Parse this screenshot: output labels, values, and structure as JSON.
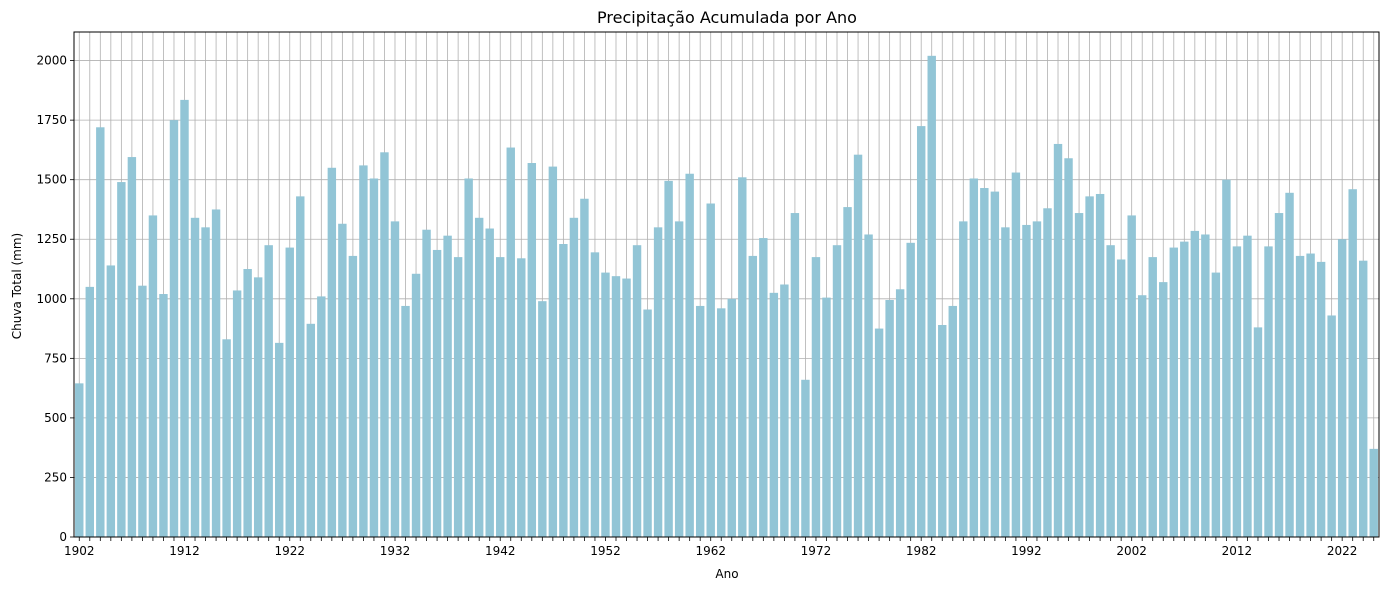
{
  "chart_data": {
    "type": "bar",
    "title": "Precipitação Acumulada por Ano",
    "xlabel": "Ano",
    "ylabel": "Chuva Total (mm)",
    "ylim": [
      0,
      2120
    ],
    "yticks": [
      0,
      250,
      500,
      750,
      1000,
      1250,
      1500,
      1750,
      2000
    ],
    "xtick_labels": [
      "1902",
      "1912",
      "1922",
      "1932",
      "1942",
      "1952",
      "1962",
      "1972",
      "1982",
      "1992",
      "2002",
      "2012",
      "2022"
    ],
    "grid": true,
    "bar_color": "#92c5d6",
    "categories": [
      1902,
      1903,
      1904,
      1905,
      1906,
      1907,
      1908,
      1909,
      1910,
      1911,
      1912,
      1913,
      1914,
      1915,
      1916,
      1917,
      1918,
      1919,
      1920,
      1921,
      1922,
      1923,
      1924,
      1925,
      1926,
      1927,
      1928,
      1929,
      1930,
      1931,
      1932,
      1933,
      1934,
      1935,
      1936,
      1937,
      1938,
      1939,
      1940,
      1941,
      1942,
      1943,
      1944,
      1945,
      1946,
      1947,
      1948,
      1949,
      1950,
      1951,
      1952,
      1953,
      1954,
      1955,
      1956,
      1957,
      1958,
      1959,
      1960,
      1961,
      1962,
      1963,
      1964,
      1965,
      1966,
      1967,
      1968,
      1969,
      1970,
      1971,
      1972,
      1973,
      1974,
      1975,
      1976,
      1977,
      1978,
      1979,
      1980,
      1981,
      1982,
      1983,
      1984,
      1985,
      1986,
      1987,
      1988,
      1989,
      1990,
      1991,
      1992,
      1993,
      1994,
      1995,
      1996,
      1997,
      1998,
      1999,
      2000,
      2001,
      2002,
      2003,
      2004,
      2005,
      2006,
      2007,
      2008,
      2009,
      2010,
      2011,
      2012,
      2013,
      2014,
      2015,
      2016,
      2017,
      2018,
      2019,
      2020,
      2021,
      2022,
      2023,
      2024,
      2025
    ],
    "values": [
      645,
      1050,
      1720,
      1140,
      1490,
      1595,
      1055,
      1350,
      1020,
      1750,
      1835,
      1340,
      1300,
      1375,
      830,
      1035,
      1125,
      1090,
      1225,
      815,
      1215,
      1430,
      895,
      1010,
      1550,
      1315,
      1180,
      1560,
      1505,
      1615,
      1325,
      970,
      1105,
      1290,
      1205,
      1265,
      1175,
      1505,
      1340,
      1295,
      1175,
      1635,
      1170,
      1570,
      990,
      1555,
      1230,
      1340,
      1420,
      1195,
      1110,
      1095,
      1085,
      1225,
      955,
      1300,
      1495,
      1325,
      1525,
      970,
      1400,
      960,
      1000,
      1510,
      1180,
      1255,
      1025,
      1060,
      1360,
      660,
      1175,
      1005,
      1225,
      1385,
      1605,
      1270,
      875,
      995,
      1040,
      1235,
      1725,
      2020,
      890,
      970,
      1325,
      1505,
      1465,
      1450,
      1300,
      1530,
      1310,
      1325,
      1380,
      1650,
      1590,
      1360,
      1430,
      1440,
      1225,
      1165,
      1350,
      1015,
      1175,
      1070,
      1215,
      1240,
      1285,
      1270,
      1110,
      1500,
      1220,
      1265,
      880,
      1220,
      1360,
      1445,
      1180,
      1190,
      1155,
      930,
      1250,
      1460,
      1160,
      370
    ]
  }
}
